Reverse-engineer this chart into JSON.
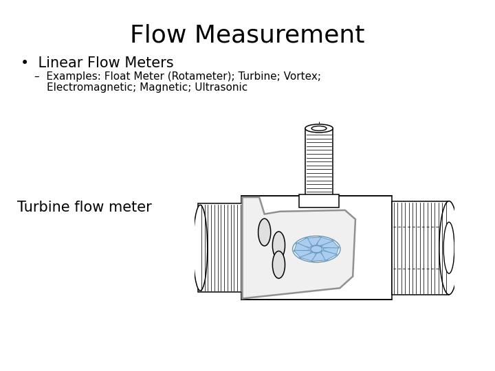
{
  "title": "Flow Measurement",
  "bullet1": "Linear Flow Meters",
  "sub_bullet1_line1": "Examples: Float Meter (Rotameter); Turbine; Vortex;",
  "sub_bullet1_line2": "Electromagnetic; Magnetic; Ultrasonic",
  "label": "Turbine flow meter",
  "title_fontsize": 26,
  "bullet_fontsize": 15,
  "sub_bullet_fontsize": 11,
  "label_fontsize": 15,
  "bg_color": "#ffffff",
  "text_color": "#000000"
}
